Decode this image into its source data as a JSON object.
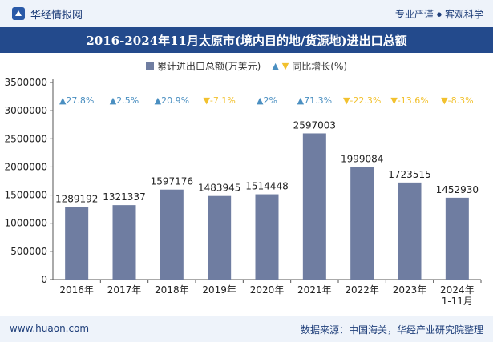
{
  "header": {
    "brand": "华经情报网",
    "tagline_left": "专业严谨",
    "tagline_sep": "●",
    "tagline_right": "客观科学"
  },
  "title": "2016-2024年11月太原市(境内目的地/货源地)进出口总额",
  "legend": {
    "bar_label": "累计进出口总额(万美元)",
    "line_label": "同比增长(%)"
  },
  "footer": {
    "site": "www.huaon.com",
    "source": "数据来源：中国海关，华经产业研究院整理"
  },
  "colors": {
    "bar": "#6f7da1",
    "up": "#4a8fc1",
    "down": "#f2c12e",
    "title_bg": "#234a8c"
  },
  "chart_data": {
    "type": "bar",
    "categories": [
      "2016年",
      "2017年",
      "2018年",
      "2019年",
      "2020年",
      "2021年",
      "2022年",
      "2023年",
      "2024年\n1-11月"
    ],
    "series": [
      {
        "name": "累计进出口总额(万美元)",
        "values": [
          1289192,
          1321337,
          1597176,
          1483945,
          1514448,
          2597003,
          1999084,
          1723515,
          1452930
        ]
      },
      {
        "name": "同比增长(%)",
        "values": [
          27.8,
          2.5,
          20.9,
          -7.1,
          2,
          71.3,
          -22.3,
          -13.6,
          -8.3
        ],
        "labels": [
          "27.8%",
          "2.5%",
          "20.9%",
          "-7.1%",
          "2%",
          "71.3%",
          "-22.3%",
          "-13.6%",
          "-8.3%"
        ]
      }
    ],
    "ylim": [
      0,
      3500000
    ],
    "yticks": [
      0,
      500000,
      1000000,
      1500000,
      2000000,
      2500000,
      3000000,
      3500000
    ],
    "grid": false,
    "legend_position": "top-center"
  }
}
